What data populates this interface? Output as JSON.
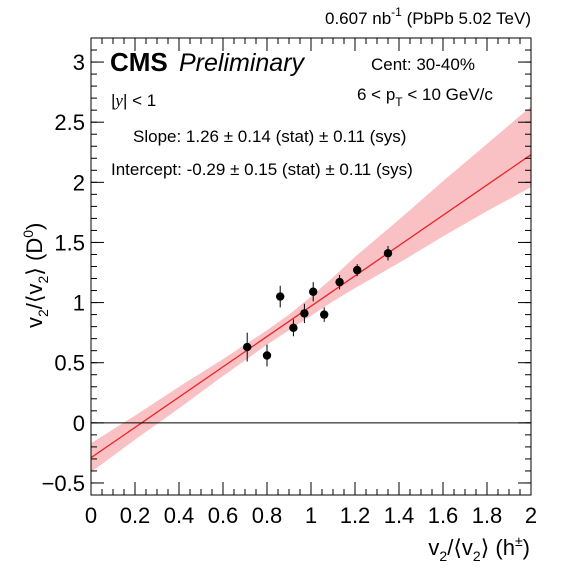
{
  "header": {
    "lumi_value": "0.607 nb",
    "lumi_exponent": "-1",
    "lumi_system": " (PbPb 5.02 TeV)"
  },
  "labels": {
    "cms": "CMS",
    "preliminary": "Preliminary",
    "rapidity_prefix": "|",
    "rapidity_symbol": "y",
    "rapidity_suffix": "| < 1",
    "centrality": "Cent: 30-40%",
    "pt_prefix": "6 < p",
    "pt_sub": "T",
    "pt_suffix": " < 10 GeV/c",
    "slope": "Slope: 1.26 ± 0.14 (stat) ± 0.11 (sys)",
    "intercept": "Intercept: -0.29 ± 0.15 (stat) ± 0.11 (sys)"
  },
  "colors": {
    "fit_line": "#e8262a",
    "fit_band": "#f8b6b8",
    "markers": "#000000",
    "zero_line": "#000000"
  },
  "chart_data": {
    "type": "scatter",
    "xlabel": {
      "v": "v",
      "sub1": "2",
      "mid": "/⟨v",
      "sub2": "2",
      "close": "⟩ (h",
      "sup": "±",
      "end": ")"
    },
    "ylabel": {
      "v": "v",
      "sub1": "2",
      "mid": "/⟨v",
      "sub2": "2",
      "close": "⟩ (D",
      "sup": "0",
      "end": ")"
    },
    "xlim": [
      0,
      2
    ],
    "ylim": [
      -0.6,
      3.2
    ],
    "x_ticks": [
      "0",
      "0.2",
      "0.4",
      "0.6",
      "0.8",
      "1",
      "1.2",
      "1.4",
      "1.6",
      "1.8",
      "2"
    ],
    "y_ticks": [
      "−0.5",
      "0",
      "0.5",
      "1",
      "1.5",
      "2",
      "2.5",
      "3"
    ],
    "grid": false,
    "zero_line": true,
    "points": [
      {
        "x": 0.71,
        "y": 0.63,
        "yerr": 0.12
      },
      {
        "x": 0.8,
        "y": 0.56,
        "yerr": 0.09
      },
      {
        "x": 0.86,
        "y": 1.05,
        "yerr": 0.09
      },
      {
        "x": 0.92,
        "y": 0.79,
        "yerr": 0.07
      },
      {
        "x": 0.97,
        "y": 0.91,
        "yerr": 0.08
      },
      {
        "x": 1.01,
        "y": 1.09,
        "yerr": 0.08
      },
      {
        "x": 1.06,
        "y": 0.9,
        "yerr": 0.06
      },
      {
        "x": 1.13,
        "y": 1.17,
        "yerr": 0.06
      },
      {
        "x": 1.21,
        "y": 1.27,
        "yerr": 0.05
      },
      {
        "x": 1.35,
        "y": 1.41,
        "yerr": 0.06
      }
    ],
    "fit": {
      "slope": 1.26,
      "intercept": -0.29,
      "band_x": [
        0,
        0.2,
        0.4,
        0.6,
        0.8,
        0.9,
        1.0,
        1.1,
        1.2,
        1.4,
        1.6,
        1.8,
        2.0
      ],
      "band_lower": [
        -0.41,
        -0.14,
        0.12,
        0.39,
        0.65,
        0.77,
        0.89,
        1.01,
        1.12,
        1.33,
        1.55,
        1.76,
        1.96
      ],
      "band_upper": [
        -0.17,
        0.06,
        0.3,
        0.53,
        0.77,
        0.9,
        1.05,
        1.21,
        1.38,
        1.69,
        2.01,
        2.32,
        2.63
      ]
    }
  }
}
